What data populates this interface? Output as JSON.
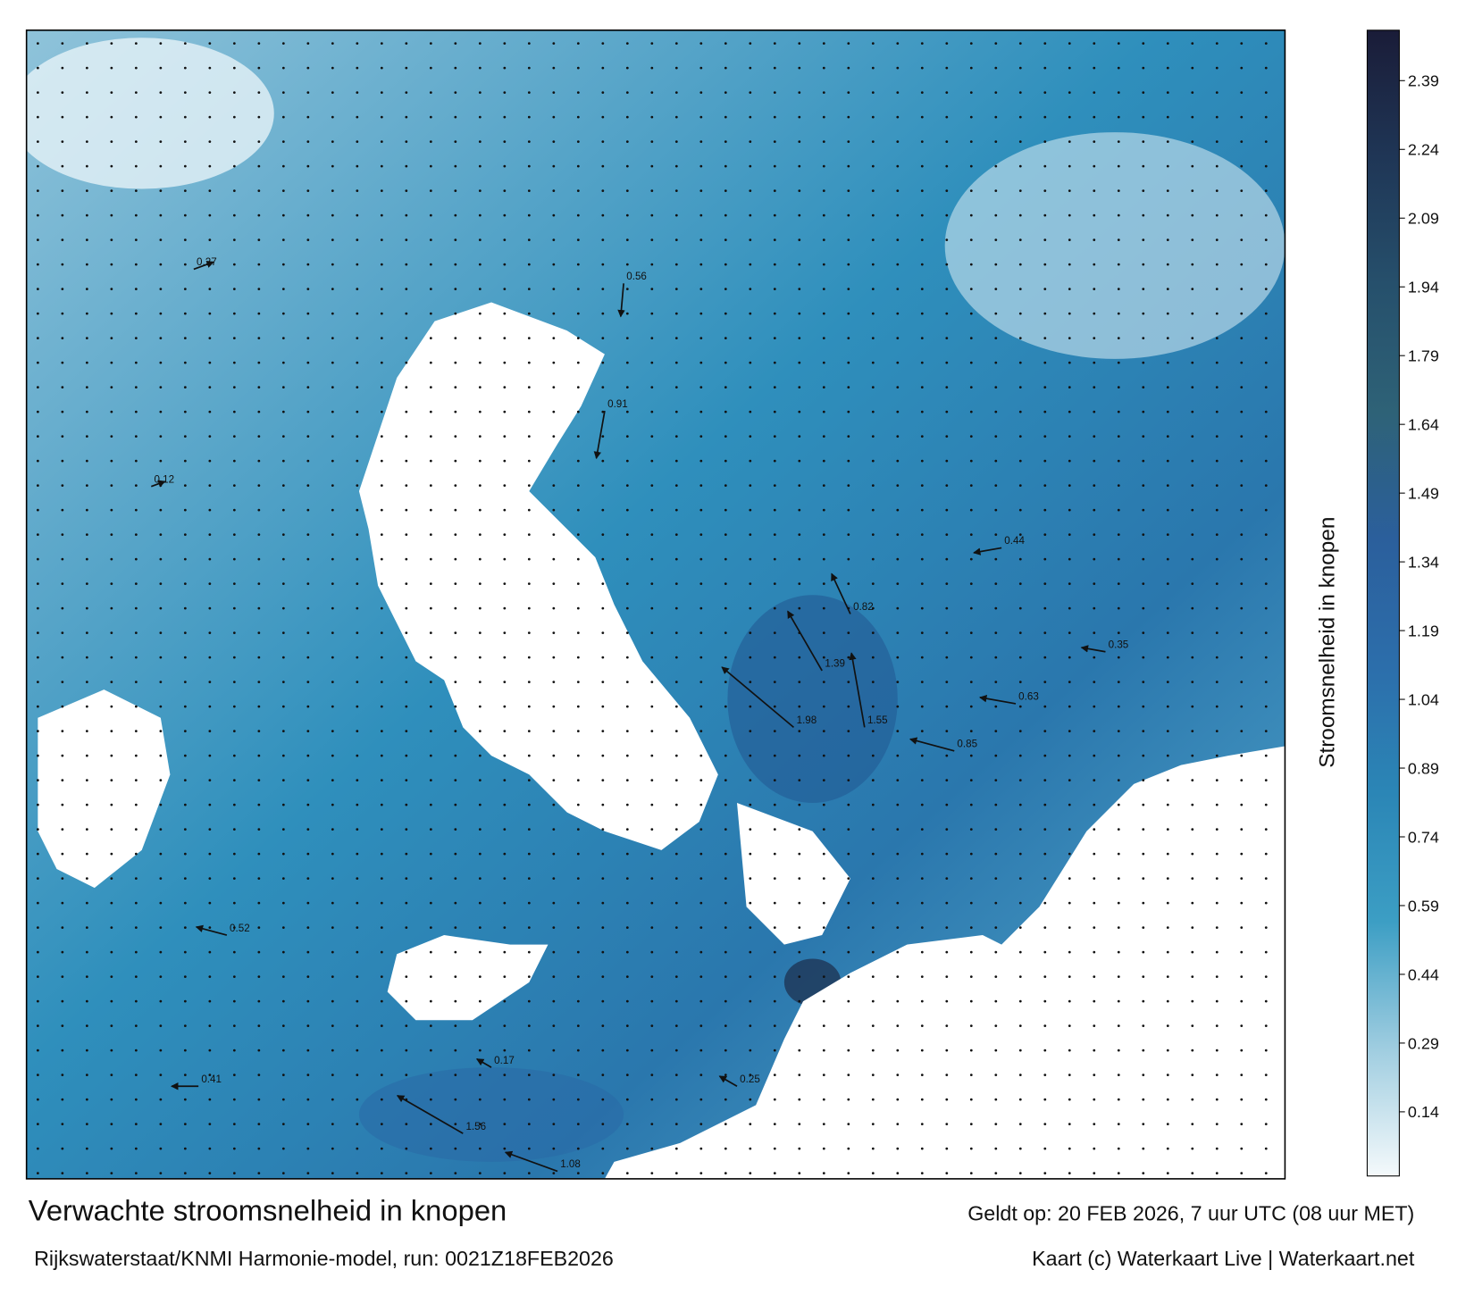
{
  "map": {
    "title": "Verwachte stroomsnelheid in knopen",
    "subtitle": "Rijkswaterstaat/KNMI Harmonie-model, run: 0021Z18FEB2026",
    "valid": "Geldt op: 20 FEB 2026, 7 uur UTC (08 uur MET)",
    "credit": "Kaart (c) Waterkaart Live | Waterkaart.net",
    "samples": [
      1.98,
      1.55,
      1.39,
      0.82,
      0.56,
      0.91,
      0.44,
      0.35,
      1.08,
      1.56,
      0.41,
      0.52,
      0.27,
      0.12,
      0.85,
      0.63,
      0.17,
      0.25
    ]
  },
  "colorbar": {
    "label": "Stroomsnelheid in knopen",
    "lim": [
      0,
      2.5
    ],
    "ticks": [
      0.14,
      0.29,
      0.44,
      0.59,
      0.74,
      0.89,
      1.04,
      1.19,
      1.34,
      1.49,
      1.64,
      1.79,
      1.94,
      2.09,
      2.24,
      2.39
    ],
    "colors": [
      "#f4f9fb",
      "#9fcde0",
      "#3c9ec4",
      "#2b86b6",
      "#2c6eab",
      "#2b5f9c",
      "#2e6277",
      "#26506c",
      "#1f3656",
      "#1a1c38"
    ]
  }
}
